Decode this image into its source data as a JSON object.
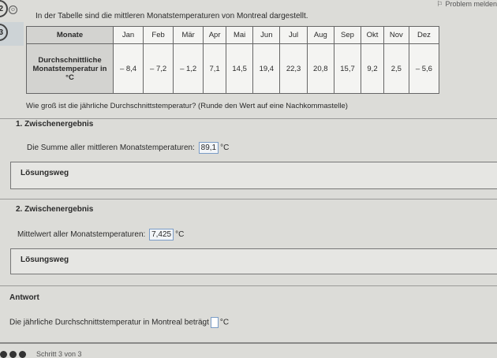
{
  "header": {
    "problem_label": "Problem melden",
    "step_numbers": [
      "2",
      "3"
    ]
  },
  "intro": "In der Tabelle sind die mittleren Monatstemperaturen von Montreal dargestellt.",
  "table": {
    "row_headers": [
      "Monate",
      "Durchschnittliche Monatstemperatur in °C"
    ],
    "months": [
      "Jan",
      "Feb",
      "Mär",
      "Apr",
      "Mai",
      "Jun",
      "Jul",
      "Aug",
      "Sep",
      "Okt",
      "Nov",
      "Dez"
    ],
    "values": [
      "– 8,4",
      "– 7,2",
      "– 1,2",
      "7,1",
      "14,5",
      "19,4",
      "22,3",
      "20,8",
      "15,7",
      "9,2",
      "2,5",
      "– 5,6"
    ]
  },
  "question": "Wie groß ist die jährliche Durchschnittstemperatur? (Runde den Wert auf eine Nachkommastelle)",
  "step1": {
    "title": "1. Zwischenergebnis",
    "text": "Die Summe aller mittleren Monatstemperaturen:",
    "value": "89,1",
    "unit": "°C",
    "solution_label": "Lösungsweg"
  },
  "step2": {
    "title": "2. Zwischenergebnis",
    "text": "Mittelwert aller Monatstemperaturen:",
    "value": "7,425",
    "unit": "°C",
    "solution_label": "Lösungsweg"
  },
  "answer": {
    "title": "Antwort",
    "text": "Die jährliche Durchschnittstemperatur in Montreal beträgt",
    "value": "",
    "unit": "°C"
  },
  "footer": {
    "progress": "Schritt 3 von 3"
  }
}
